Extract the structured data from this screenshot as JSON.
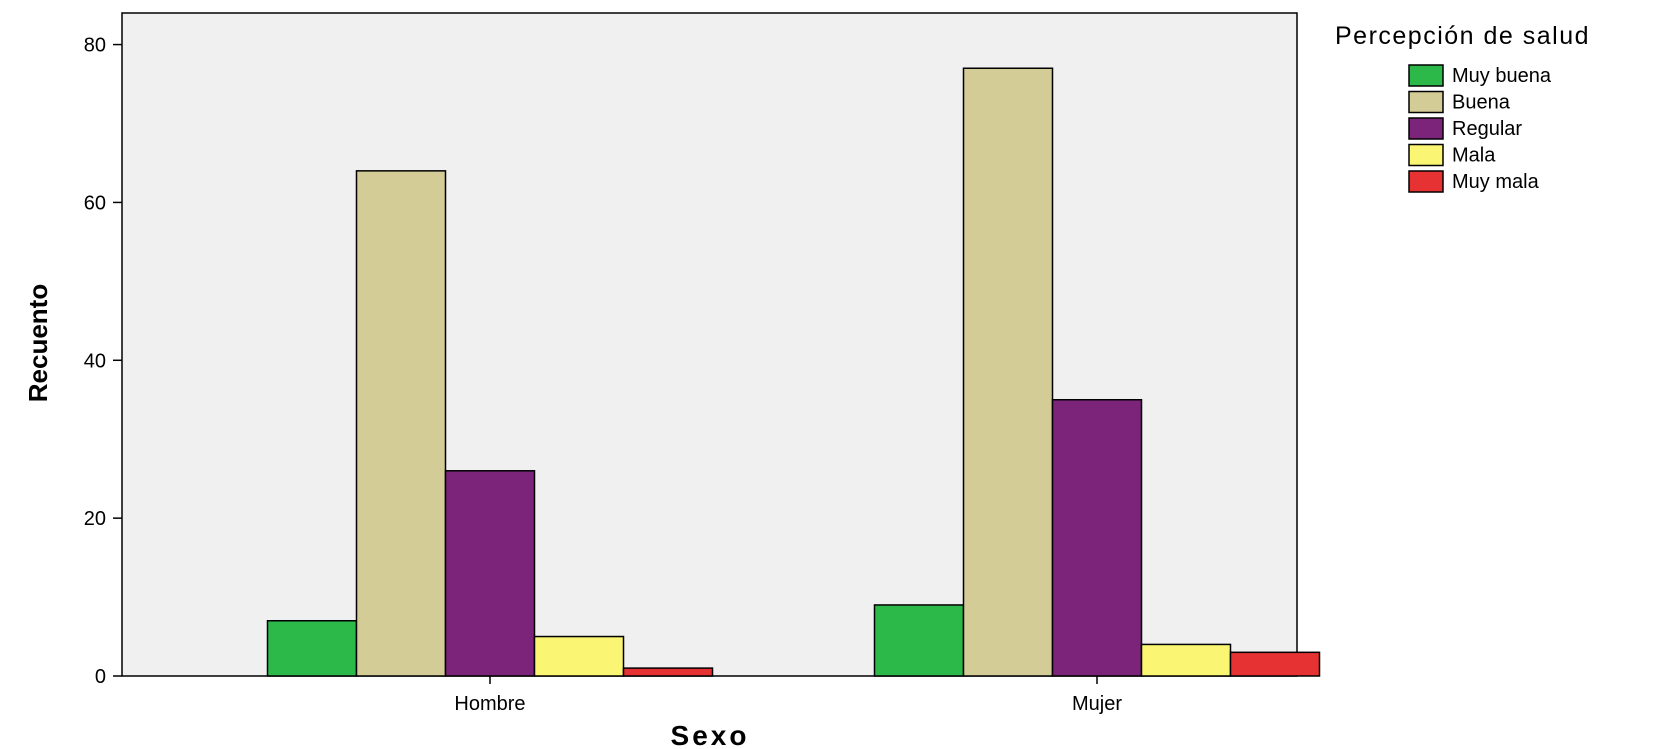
{
  "chart_data": {
    "type": "bar",
    "categories": [
      "Hombre",
      "Mujer"
    ],
    "series": [
      {
        "name": "Muy buena",
        "values": [
          7,
          9
        ],
        "color": "#2db84a"
      },
      {
        "name": "Buena",
        "values": [
          64,
          77
        ],
        "color": "#d3cc96"
      },
      {
        "name": "Regular",
        "values": [
          26,
          35
        ],
        "color": "#7b2479"
      },
      {
        "name": "Mala",
        "values": [
          5,
          4
        ],
        "color": "#fbf574"
      },
      {
        "name": "Muy mala",
        "values": [
          1,
          3
        ],
        "color": "#e63232"
      }
    ],
    "xlabel": "Sexo",
    "ylabel": "Recuento",
    "ylim": [
      0,
      84
    ],
    "yticks": [
      0,
      20,
      40,
      60,
      80
    ],
    "legend_title": "Percepción de salud",
    "legend_position": "right",
    "plot_background": "#f0f0f0",
    "grid": false
  }
}
